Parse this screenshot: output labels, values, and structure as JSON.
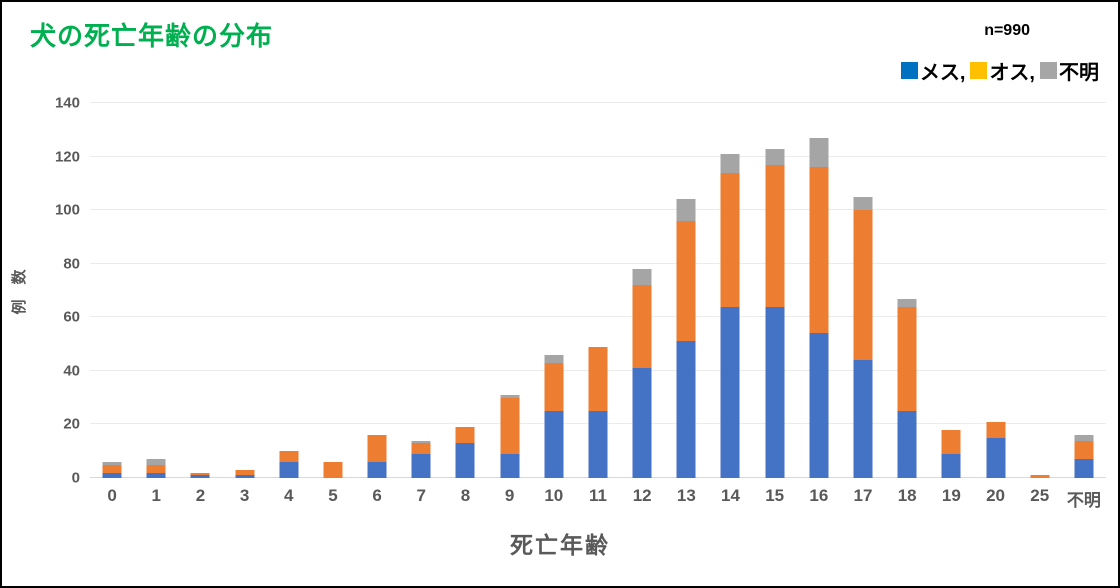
{
  "header": {
    "title": "犬の死亡年齢の分布",
    "title_color": "#00B050",
    "sample_size_label": "n=990"
  },
  "legend": {
    "items": [
      {
        "key": "female",
        "label": "メス,",
        "color": "#0070C0"
      },
      {
        "key": "male",
        "label": "オス,",
        "color": "#FFC000"
      },
      {
        "key": "unknown",
        "label": "不明",
        "color": "#A6A6A6"
      }
    ]
  },
  "chart_data": {
    "type": "bar",
    "stacked": true,
    "title": "犬の死亡年齢の分布",
    "xlabel": "死亡年齢",
    "ylabel": "例　数",
    "n_label": "n=990",
    "ylim": [
      0,
      140
    ],
    "ytick_step": 20,
    "grid": true,
    "legend_position": "top-right",
    "categories": [
      "0",
      "1",
      "2",
      "3",
      "4",
      "5",
      "6",
      "7",
      "8",
      "9",
      "10",
      "11",
      "12",
      "13",
      "14",
      "15",
      "16",
      "17",
      "18",
      "19",
      "20",
      "25",
      "不明"
    ],
    "series": [
      {
        "name": "メス",
        "key": "female",
        "color": "#4472C4",
        "values": [
          2,
          2,
          1,
          1,
          6,
          0,
          6,
          9,
          13,
          9,
          25,
          25,
          41,
          51,
          64,
          64,
          54,
          44,
          25,
          9,
          15,
          0,
          7
        ]
      },
      {
        "name": "オス",
        "key": "male",
        "color": "#ED7D31",
        "values": [
          3,
          3,
          1,
          2,
          4,
          6,
          10,
          4,
          6,
          21,
          18,
          24,
          31,
          45,
          50,
          53,
          62,
          56,
          39,
          9,
          6,
          1,
          7
        ]
      },
      {
        "name": "不明",
        "key": "unknown",
        "color": "#A5A5A5",
        "values": [
          1,
          2,
          0,
          0,
          0,
          0,
          0,
          1,
          0,
          1,
          3,
          0,
          6,
          8,
          7,
          6,
          11,
          5,
          3,
          0,
          0,
          0,
          2
        ]
      }
    ],
    "totals": [
      6,
      7,
      2,
      3,
      10,
      6,
      16,
      14,
      19,
      31,
      46,
      49,
      78,
      104,
      121,
      123,
      127,
      105,
      67,
      18,
      21,
      1,
      16
    ]
  }
}
